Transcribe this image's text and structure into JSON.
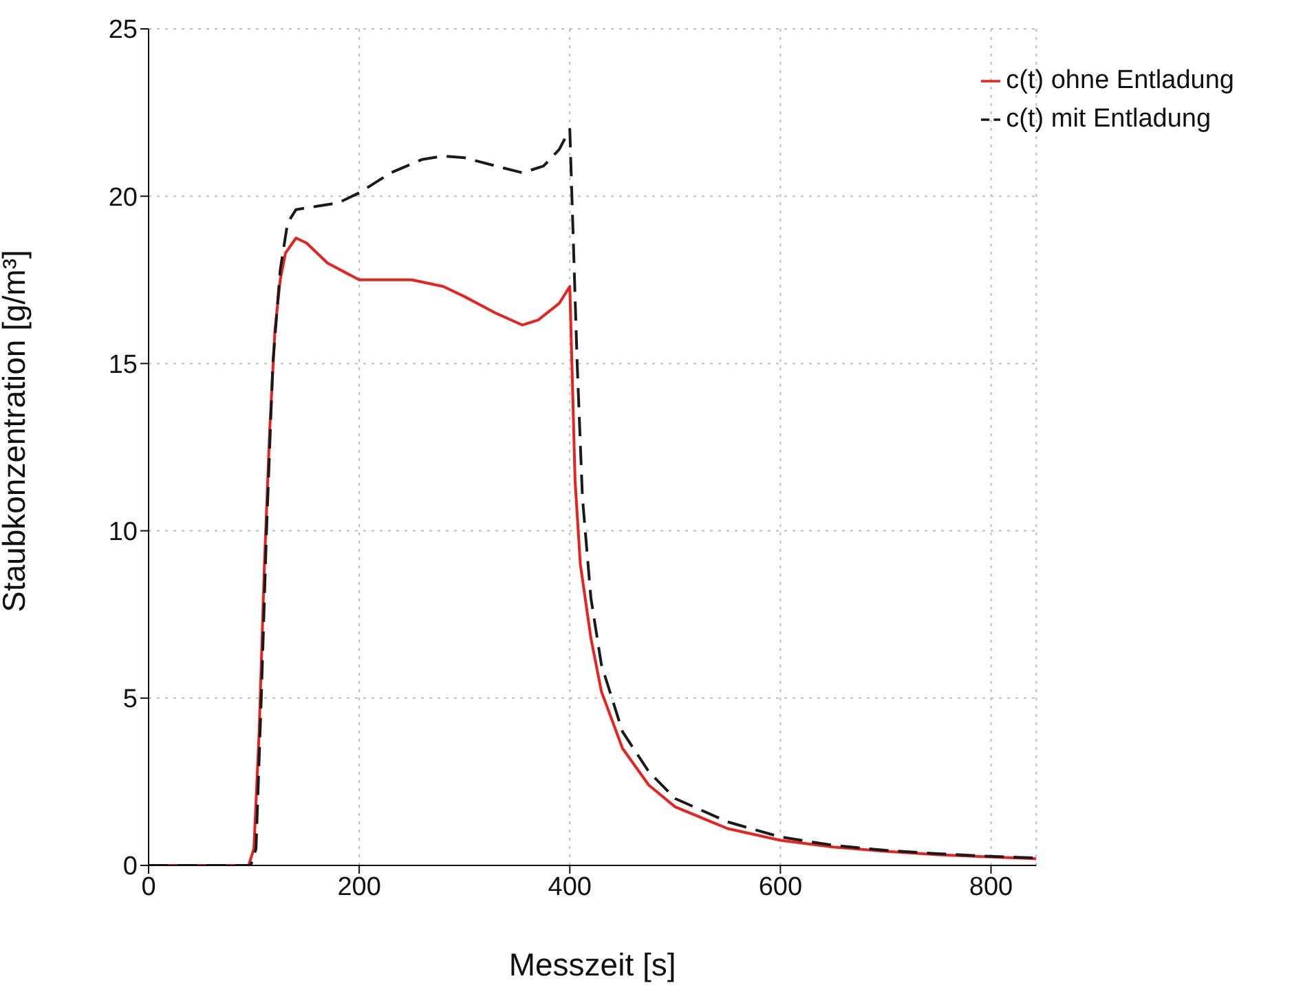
{
  "chart_data": {
    "type": "line",
    "xlabel": "Messzeit [s]",
    "ylabel": "Staubkonzentration [g/m³]",
    "xlim": [
      0,
      843
    ],
    "xticks": [
      0,
      200,
      400,
      600,
      800
    ],
    "ylim": [
      0,
      25
    ],
    "yticks": [
      0,
      5,
      10,
      15,
      20,
      25
    ],
    "grid": true,
    "legend": "top right",
    "marker": "none",
    "series": [
      {
        "name": "c(t) ohne Entladung",
        "color": "#e8221f",
        "line_style": "solid",
        "x": [
          0,
          95,
          100,
          105,
          110,
          115,
          120,
          125,
          130,
          140,
          150,
          170,
          200,
          220,
          250,
          280,
          300,
          330,
          355,
          370,
          390,
          400,
          402,
          405,
          410,
          420,
          430,
          450,
          475,
          500,
          550,
          600,
          650,
          700,
          750,
          800,
          843
        ],
        "values": [
          0,
          0,
          0.5,
          4,
          9,
          13,
          16,
          17.5,
          18.3,
          18.75,
          18.6,
          18,
          17.5,
          17.5,
          17.5,
          17.3,
          17,
          16.5,
          16.15,
          16.3,
          16.8,
          17.3,
          15,
          11.5,
          9,
          6.8,
          5.2,
          3.5,
          2.4,
          1.75,
          1.1,
          0.75,
          0.55,
          0.42,
          0.32,
          0.25,
          0.2
        ]
      },
      {
        "name": "c(t) mit Entladung",
        "color": "#1a1a1a",
        "line_style": "dashed",
        "x": [
          0,
          97,
          102,
          107,
          112,
          118,
          125,
          132,
          140,
          160,
          180,
          200,
          230,
          260,
          280,
          300,
          330,
          355,
          375,
          390,
          400,
          403,
          407,
          412,
          420,
          430,
          450,
          475,
          500,
          550,
          600,
          650,
          700,
          750,
          800,
          843
        ],
        "values": [
          0,
          0,
          0.5,
          5,
          10,
          15,
          17.8,
          19.2,
          19.6,
          19.7,
          19.8,
          20.1,
          20.7,
          21.1,
          21.2,
          21.15,
          20.9,
          20.7,
          20.9,
          21.4,
          22,
          19,
          15,
          11,
          8,
          6,
          4,
          2.8,
          2,
          1.3,
          0.85,
          0.6,
          0.45,
          0.35,
          0.27,
          0.22
        ]
      }
    ]
  }
}
